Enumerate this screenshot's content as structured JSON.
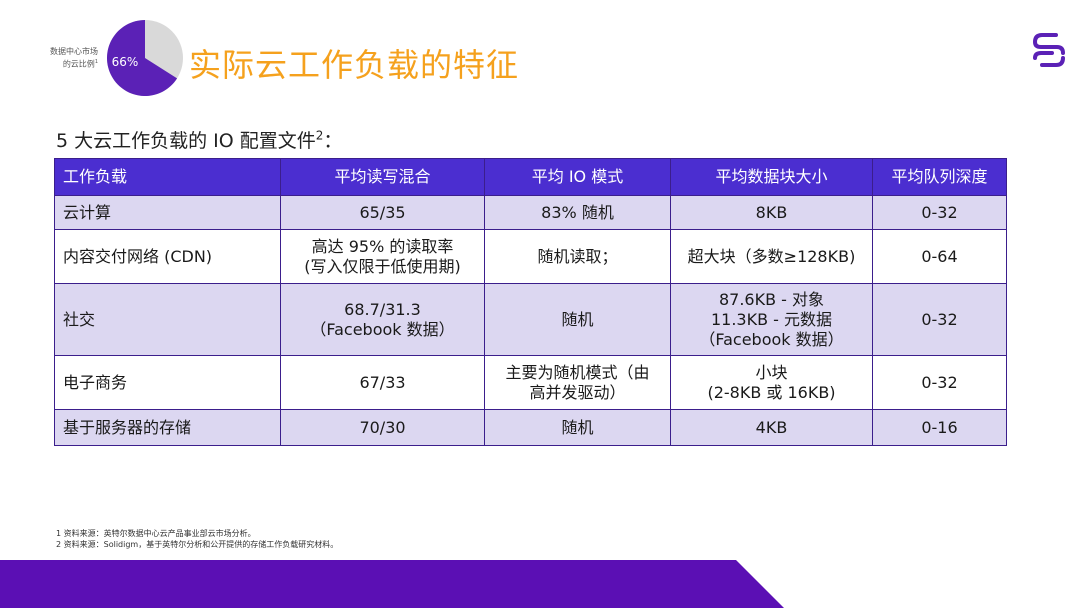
{
  "pie": {
    "label_line1": "数据中心市场",
    "label_line2": "的云比例",
    "label_sup": "1",
    "percent_text": "66%",
    "fraction": 0.66,
    "fill_color": "#5b21b6",
    "rest_color": "#d9d9d9"
  },
  "title": "实际云工作负载的特征",
  "subtitle": {
    "text": "5 大云工作负载的 IO 配置文件",
    "sup": "2",
    "suffix": "："
  },
  "table": {
    "headers": [
      "工作负载",
      "平均读写混合",
      "平均 IO 模式",
      "平均数据块大小",
      "平均队列深度"
    ],
    "rows": [
      {
        "workload": [
          "云计算"
        ],
        "mix": [
          "65/35"
        ],
        "pattern": [
          "83% 随机"
        ],
        "block": [
          "8KB"
        ],
        "queue": [
          "0-32"
        ]
      },
      {
        "workload": [
          "内容交付网络 (CDN)"
        ],
        "mix": [
          "高达 95% 的读取率",
          "(写入仅限于低使用期)"
        ],
        "pattern": [
          "随机读取；"
        ],
        "block": [
          "超大块（多数≥128KB)"
        ],
        "queue": [
          "0-64"
        ]
      },
      {
        "workload": [
          "社交"
        ],
        "mix": [
          "68.7/31.3",
          "（Facebook 数据）"
        ],
        "pattern": [
          "随机"
        ],
        "block": [
          "87.6KB - 对象",
          "11.3KB - 元数据",
          "（Facebook 数据）"
        ],
        "queue": [
          "0-32"
        ]
      },
      {
        "workload": [
          "电子商务"
        ],
        "mix": [
          "67/33"
        ],
        "pattern": [
          "主要为随机模式（由",
          "高并发驱动）"
        ],
        "block": [
          "小块",
          "(2-8KB 或 16KB)"
        ],
        "queue": [
          "0-32"
        ]
      },
      {
        "workload": [
          "基于服务器的存储"
        ],
        "mix": [
          "70/30"
        ],
        "pattern": [
          "随机"
        ],
        "block": [
          "4KB"
        ],
        "queue": [
          "0-16"
        ]
      }
    ]
  },
  "footnotes": [
    "1 资料来源：英特尔数据中心云产品事业部云市场分析。",
    "2 资料来源：Solidigm，基于英特尔分析和公开提供的存储工作负载研究材料。"
  ],
  "colors": {
    "accent": "#f5a11d",
    "header_bg": "#4b2ed0",
    "row_alt": "#dcd7f1",
    "band": "#5b0fb4",
    "logo": "#5b21b6"
  }
}
